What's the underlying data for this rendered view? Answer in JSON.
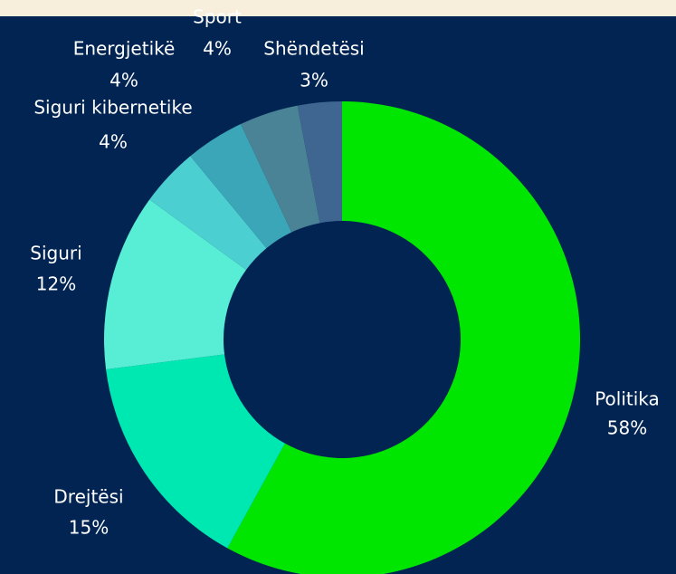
{
  "chart_data": {
    "type": "donut",
    "categories": [
      "Politika",
      "Drejtësi",
      "Siguri",
      "Siguri kibernetike",
      "Energjetikë",
      "Sport",
      "Shëndetësi"
    ],
    "values": [
      58,
      15,
      12,
      4,
      4,
      4,
      3
    ],
    "value_labels": [
      "58%",
      "15%",
      "12%",
      "4%",
      "4%",
      "4%",
      "3%"
    ],
    "colors": [
      "#00e600",
      "#00e8b2",
      "#58eed6",
      "#4ccfd0",
      "#3aa6b8",
      "#4a8396",
      "#3e6690"
    ]
  }
}
